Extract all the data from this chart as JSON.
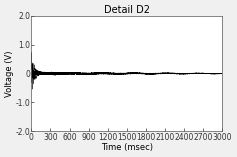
{
  "title": "Detail D2",
  "xlabel": "Time (msec)",
  "ylabel": "Voltage (V)",
  "xlim": [
    0,
    3000
  ],
  "ylim": [
    -2.0,
    2.0
  ],
  "xticks": [
    0,
    300,
    600,
    900,
    1200,
    1500,
    1800,
    2100,
    2400,
    2700,
    3000
  ],
  "yticks": [
    -2.0,
    -1.0,
    0.0,
    1.0,
    2.0
  ],
  "ytick_labels": [
    "-2.0",
    "-1.0",
    "0",
    "1.0",
    "2.0"
  ],
  "line_color": "#000000",
  "background_color": "#f0f0f0",
  "axes_facecolor": "#ffffff",
  "title_fontsize": 7,
  "label_fontsize": 6,
  "tick_fontsize": 5.5,
  "figsize": [
    2.37,
    1.57
  ],
  "dpi": 100
}
